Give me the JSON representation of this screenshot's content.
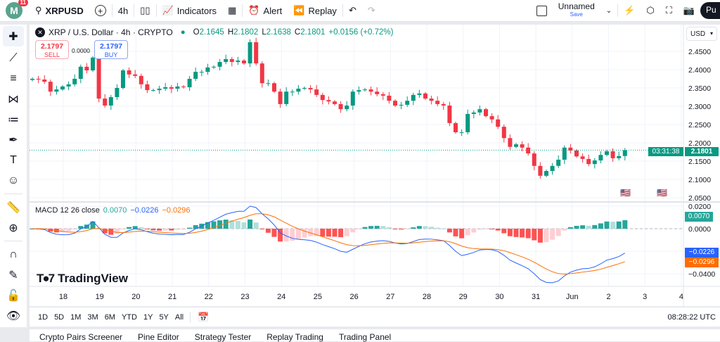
{
  "topbar": {
    "notification_count": "11",
    "avatar_letter": "M",
    "symbol": "XRPUSD",
    "interval": "4h",
    "indicators": "Indicators",
    "alert": "Alert",
    "replay": "Replay",
    "layout_name": "Unnamed",
    "save": "Save",
    "profile": "Pu"
  },
  "legend": {
    "title": "XRP / U.S. Dollar · 4h · CRYPTO",
    "o_label": "O",
    "o": "2.1645",
    "h_label": "H",
    "h": "2.1802",
    "l_label": "L",
    "l": "2.1638",
    "c_label": "C",
    "c": "2.1801",
    "change": "+0.0156 (+0.72%)",
    "sell_price": "2.1797",
    "sell": "SELL",
    "spread": "0.0000",
    "buy_price": "2.1797",
    "buy": "BUY"
  },
  "macd_legend": {
    "label": "MACD 12 26 close",
    "hist": "0.0070",
    "macd": "−0.0226",
    "signal": "−0.0296"
  },
  "currency": "USD",
  "last_price": "2.1801",
  "countdown": "03:31:38",
  "watermark": "TradingView",
  "range_buttons": [
    "1D",
    "5D",
    "1M",
    "3M",
    "6M",
    "YTD",
    "1Y",
    "5Y",
    "All"
  ],
  "clock": "08:28:22 UTC",
  "bottom_tabs": [
    "Crypto Pairs Screener",
    "Pine Editor",
    "Strategy Tester",
    "Replay Trading",
    "Trading Panel"
  ],
  "colors": {
    "up": "#089981",
    "down": "#f23645",
    "macd": "#2962ff",
    "signal": "#ff6d00"
  },
  "chart_data": {
    "type": "candlestick",
    "price_ticks": [
      "2.4500",
      "2.4000",
      "2.3500",
      "2.3000",
      "2.2500",
      "2.2000",
      "2.1500",
      "2.1000",
      "2.0500"
    ],
    "macd_ticks": [
      "0.0200",
      "0.0000",
      "−0.0200",
      "−0.0400"
    ],
    "x_ticks": [
      "18",
      "19",
      "20",
      "21",
      "22",
      "23",
      "24",
      "25",
      "26",
      "27",
      "28",
      "29",
      "30",
      "31",
      "Jun",
      "2",
      "3",
      "4"
    ],
    "start_open": 2.372,
    "closes": [
      2.375,
      2.373,
      2.367,
      2.34,
      2.346,
      2.354,
      2.36,
      2.375,
      2.408,
      2.398,
      2.433,
      2.321,
      2.302,
      2.325,
      2.35,
      2.398,
      2.387,
      2.383,
      2.36,
      2.344,
      2.344,
      2.348,
      2.352,
      2.348,
      2.354,
      2.352,
      2.375,
      2.394,
      2.394,
      2.406,
      2.408,
      2.421,
      2.429,
      2.421,
      2.425,
      2.417,
      2.475,
      2.417,
      2.363,
      2.363,
      2.34,
      2.306,
      2.34,
      2.34,
      2.348,
      2.35,
      2.346,
      2.331,
      2.317,
      2.313,
      2.306,
      2.292,
      2.302,
      2.34,
      2.344,
      2.346,
      2.34,
      2.333,
      2.329,
      2.315,
      2.302,
      2.304,
      2.315,
      2.331,
      2.335,
      2.321,
      2.315,
      2.306,
      2.302,
      2.254,
      2.229,
      2.229,
      2.279,
      2.283,
      2.292,
      2.273,
      2.264,
      2.244,
      2.213,
      2.189,
      2.196,
      2.187,
      2.171,
      2.137,
      2.11,
      2.123,
      2.137,
      2.154,
      2.187,
      2.179,
      2.163,
      2.156,
      2.142,
      2.152,
      2.167,
      2.177,
      2.158,
      2.164,
      2.18
    ]
  }
}
